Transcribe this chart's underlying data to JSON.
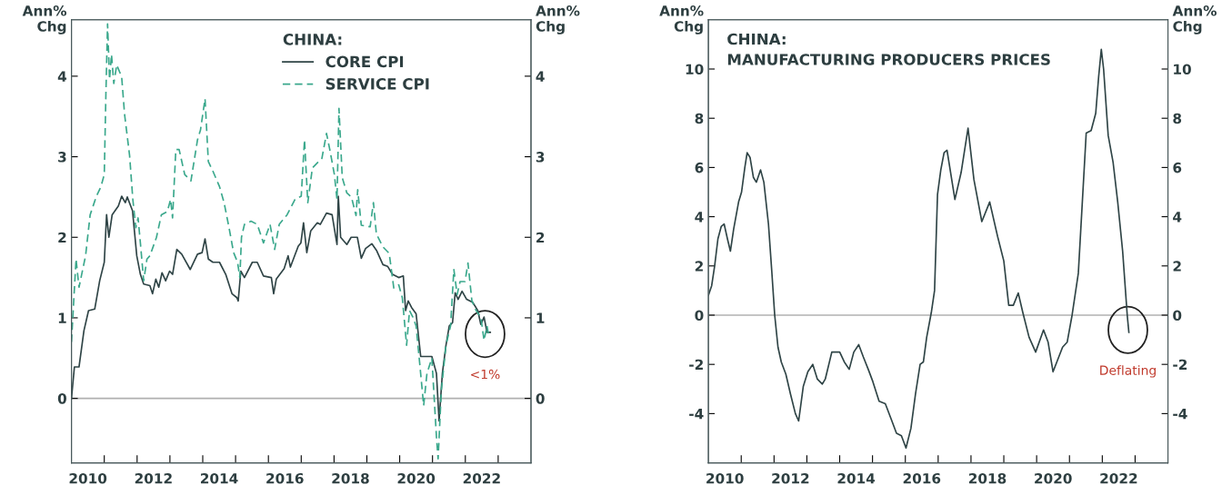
{
  "chart_data": [
    {
      "type": "line",
      "legend_title": "CHINA:",
      "legend": "top",
      "ylabel": "Ann%\nChg",
      "y2label": "Ann%\nChg",
      "xlim": [
        2010,
        2024
      ],
      "xticks": [
        {
          "value": 2010.5,
          "label": "2010"
        },
        {
          "value": 2012.5,
          "label": "2012"
        },
        {
          "value": 2014.5,
          "label": "2014"
        },
        {
          "value": 2016.5,
          "label": "2016"
        },
        {
          "value": 2018.5,
          "label": "2018"
        },
        {
          "value": 2020.5,
          "label": "2020"
        },
        {
          "value": 2022.5,
          "label": "2022"
        },
        {
          "value": 2011,
          "label": null
        },
        {
          "value": 2012,
          "label": null
        },
        {
          "value": 2013,
          "label": null
        },
        {
          "value": 2014,
          "label": null
        },
        {
          "value": 2015,
          "label": null
        },
        {
          "value": 2016,
          "label": null
        },
        {
          "value": 2017,
          "label": null
        },
        {
          "value": 2018,
          "label": null
        },
        {
          "value": 2019,
          "label": null
        },
        {
          "value": 2020,
          "label": null
        },
        {
          "value": 2021,
          "label": null
        },
        {
          "value": 2022,
          "label": null
        },
        {
          "value": 2023,
          "label": null
        }
      ],
      "ylim": [
        -0.8,
        4.7
      ],
      "yticks": [
        0,
        1,
        2,
        3,
        4
      ],
      "y2lim": [
        -0.8,
        4.7
      ],
      "y2ticks": [
        0,
        1,
        2,
        3,
        4
      ],
      "ref_lines": [
        {
          "axis": "y",
          "value": 0,
          "color": "#b0b0b0"
        }
      ],
      "annotations": [
        {
          "text": "<1%",
          "x": 2022.6,
          "y": 0.8
        }
      ],
      "series": [
        {
          "name": "CORE CPI",
          "color": "#2f4446",
          "line_style": "solid",
          "x": [
            2010.0,
            2010.09,
            2010.23,
            2010.38,
            2010.52,
            2010.71,
            2010.86,
            2011.0,
            2011.07,
            2011.14,
            2011.24,
            2011.43,
            2011.53,
            2011.64,
            2011.7,
            2011.86,
            2011.99,
            2012.1,
            2012.2,
            2012.39,
            2012.47,
            2012.57,
            2012.66,
            2012.76,
            2012.87,
            2012.99,
            2013.08,
            2013.21,
            2013.36,
            2013.62,
            2013.84,
            2013.98,
            2014.07,
            2014.17,
            2014.31,
            2014.51,
            2014.7,
            2014.89,
            2015.04,
            2015.08,
            2015.16,
            2015.27,
            2015.51,
            2015.66,
            2015.85,
            2016.09,
            2016.16,
            2016.24,
            2016.48,
            2016.6,
            2016.67,
            2016.91,
            2016.99,
            2017.07,
            2017.17,
            2017.29,
            2017.49,
            2017.58,
            2017.77,
            2017.94,
            2018.09,
            2018.13,
            2018.2,
            2018.39,
            2018.52,
            2018.71,
            2018.83,
            2018.96,
            2019.15,
            2019.29,
            2019.49,
            2019.63,
            2019.78,
            2019.97,
            2020.11,
            2020.18,
            2020.26,
            2020.36,
            2020.5,
            2020.64,
            2020.98,
            2021.12,
            2021.2,
            2021.3,
            2021.41,
            2021.51,
            2021.61,
            2021.69,
            2021.78,
            2021.9,
            2022.04,
            2022.23,
            2022.38,
            2022.47,
            2022.57,
            2022.66,
            2022.76
          ],
          "values": [
            0.0,
            0.39,
            0.39,
            0.84,
            1.09,
            1.11,
            1.46,
            1.69,
            2.28,
            2.0,
            2.28,
            2.39,
            2.51,
            2.43,
            2.5,
            2.33,
            1.77,
            1.54,
            1.42,
            1.4,
            1.3,
            1.48,
            1.38,
            1.56,
            1.46,
            1.58,
            1.54,
            1.85,
            1.79,
            1.6,
            1.79,
            1.81,
            1.98,
            1.73,
            1.69,
            1.69,
            1.54,
            1.3,
            1.25,
            1.21,
            1.58,
            1.5,
            1.69,
            1.69,
            1.52,
            1.5,
            1.3,
            1.48,
            1.61,
            1.77,
            1.63,
            1.89,
            1.93,
            2.18,
            1.81,
            2.08,
            2.18,
            2.16,
            2.3,
            2.28,
            1.91,
            2.51,
            2.0,
            1.91,
            2.0,
            2.0,
            1.74,
            1.86,
            1.92,
            1.84,
            1.66,
            1.64,
            1.54,
            1.5,
            1.52,
            1.09,
            1.21,
            1.13,
            1.05,
            0.52,
            0.52,
            0.31,
            -0.28,
            0.31,
            0.66,
            0.9,
            0.94,
            1.31,
            1.23,
            1.33,
            1.23,
            1.19,
            1.09,
            0.92,
            1.01,
            0.82,
            0.82
          ]
        },
        {
          "name": "SERVICE CPI",
          "color": "#3aa88c",
          "line_style": "dashed",
          "x": [
            2010.0,
            2010.14,
            2010.23,
            2010.43,
            2010.57,
            2010.76,
            2010.9,
            2011.0,
            2011.05,
            2011.1,
            2011.16,
            2011.22,
            2011.29,
            2011.38,
            2011.53,
            2011.62,
            2011.77,
            2011.87,
            2011.96,
            2012.03,
            2012.1,
            2012.2,
            2012.3,
            2012.39,
            2012.59,
            2012.74,
            2012.92,
            2013.02,
            2013.08,
            2013.18,
            2013.28,
            2013.45,
            2013.64,
            2013.84,
            2013.93,
            2014.07,
            2014.17,
            2014.31,
            2014.51,
            2014.65,
            2014.8,
            2014.94,
            2015.06,
            2015.13,
            2015.18,
            2015.27,
            2015.47,
            2015.66,
            2015.85,
            2016.05,
            2016.19,
            2016.33,
            2016.57,
            2016.81,
            2017.0,
            2017.1,
            2017.2,
            2017.34,
            2017.53,
            2017.63,
            2017.77,
            2017.87,
            2018.01,
            2018.09,
            2018.15,
            2018.25,
            2018.39,
            2018.53,
            2018.67,
            2018.72,
            2018.83,
            2019.1,
            2019.2,
            2019.29,
            2019.49,
            2019.68,
            2019.82,
            2019.97,
            2020.08,
            2020.21,
            2020.3,
            2020.4,
            2020.5,
            2020.62,
            2020.73,
            2020.83,
            2020.98,
            2021.12,
            2021.17,
            2021.27,
            2021.41,
            2021.55,
            2021.65,
            2021.75,
            2021.84,
            2021.99,
            2022.08,
            2022.2,
            2022.33,
            2022.47,
            2022.57,
            2022.66,
            2022.71
          ],
          "values": [
            0.7,
            1.73,
            1.38,
            1.77,
            2.28,
            2.51,
            2.63,
            2.78,
            3.79,
            4.65,
            3.96,
            4.27,
            3.91,
            4.14,
            3.99,
            3.52,
            3.02,
            2.47,
            2.12,
            2.24,
            1.93,
            1.46,
            1.73,
            1.77,
            2.0,
            2.28,
            2.32,
            2.47,
            2.24,
            3.09,
            3.09,
            2.78,
            2.7,
            3.21,
            3.33,
            3.72,
            2.94,
            2.82,
            2.63,
            2.43,
            2.12,
            1.81,
            1.69,
            1.5,
            2.0,
            2.16,
            2.2,
            2.16,
            1.93,
            2.16,
            1.85,
            2.16,
            2.28,
            2.47,
            2.51,
            3.21,
            2.43,
            2.86,
            2.94,
            2.98,
            3.29,
            3.09,
            2.78,
            2.47,
            3.6,
            2.74,
            2.55,
            2.5,
            2.27,
            2.59,
            2.15,
            2.13,
            2.43,
            2.04,
            1.88,
            1.8,
            1.37,
            1.41,
            1.25,
            0.66,
            1.09,
            1.01,
            0.9,
            0.39,
            -0.09,
            0.31,
            0.5,
            -0.48,
            -0.75,
            0.11,
            0.66,
            0.9,
            1.6,
            1.29,
            1.45,
            1.45,
            1.68,
            1.21,
            1.09,
            1.01,
            0.72,
            0.9,
            0.78
          ]
        }
      ]
    },
    {
      "type": "line",
      "title": "CHINA:\nMANUFACTURING PRODUCERS PRICES",
      "ylabel": "Ann%\nChg",
      "y2label": "Ann%\nChg",
      "xlim": [
        2010,
        2024
      ],
      "xticks": [
        {
          "value": 2010.5,
          "label": "2010"
        },
        {
          "value": 2012.5,
          "label": "2012"
        },
        {
          "value": 2014.5,
          "label": "2014"
        },
        {
          "value": 2016.5,
          "label": "2016"
        },
        {
          "value": 2018.5,
          "label": "2018"
        },
        {
          "value": 2020.5,
          "label": "2020"
        },
        {
          "value": 2022.5,
          "label": "2022"
        },
        {
          "value": 2011,
          "label": null
        },
        {
          "value": 2012,
          "label": null
        },
        {
          "value": 2013,
          "label": null
        },
        {
          "value": 2014,
          "label": null
        },
        {
          "value": 2015,
          "label": null
        },
        {
          "value": 2016,
          "label": null
        },
        {
          "value": 2017,
          "label": null
        },
        {
          "value": 2018,
          "label": null
        },
        {
          "value": 2019,
          "label": null
        },
        {
          "value": 2020,
          "label": null
        },
        {
          "value": 2021,
          "label": null
        },
        {
          "value": 2022,
          "label": null
        },
        {
          "value": 2023,
          "label": null
        }
      ],
      "ylim": [
        -6,
        12
      ],
      "yticks": [
        -4,
        -2,
        0,
        2,
        4,
        6,
        8,
        10
      ],
      "y2lim": [
        -6,
        12
      ],
      "y2ticks": [
        -4,
        -2,
        0,
        2,
        4,
        6,
        8,
        10
      ],
      "ref_lines": [
        {
          "axis": "y",
          "value": 0,
          "color": "#b0b0b0"
        }
      ],
      "annotations": [
        {
          "text": "Deflating",
          "x": 2022.78,
          "y": -0.6
        }
      ],
      "series": [
        {
          "color": "#2f4446",
          "line_style": "solid",
          "x": [
            2010.0,
            2010.1,
            2010.19,
            2010.29,
            2010.39,
            2010.48,
            2010.58,
            2010.67,
            2010.77,
            2010.92,
            2011.01,
            2011.11,
            2011.18,
            2011.27,
            2011.37,
            2011.46,
            2011.59,
            2011.69,
            2011.83,
            2011.93,
            2012.02,
            2012.12,
            2012.22,
            2012.36,
            2012.5,
            2012.65,
            2012.75,
            2012.89,
            2013.03,
            2013.18,
            2013.32,
            2013.47,
            2013.56,
            2013.76,
            2014.0,
            2014.14,
            2014.29,
            2014.43,
            2014.58,
            2014.72,
            2014.87,
            2015.01,
            2015.2,
            2015.39,
            2015.59,
            2015.73,
            2015.88,
            2016.02,
            2016.17,
            2016.31,
            2016.45,
            2016.55,
            2016.65,
            2016.79,
            2016.89,
            2016.98,
            2017.08,
            2017.18,
            2017.27,
            2017.51,
            2017.7,
            2017.91,
            2018.09,
            2018.33,
            2018.57,
            2018.81,
            2019.0,
            2019.15,
            2019.29,
            2019.44,
            2019.58,
            2019.77,
            2019.97,
            2020.21,
            2020.35,
            2020.5,
            2020.79,
            2020.93,
            2021.08,
            2021.27,
            2021.51,
            2021.66,
            2021.8,
            2021.89,
            2021.97,
            2022.04,
            2022.18,
            2022.33,
            2022.47,
            2022.62,
            2022.76,
            2022.81
          ],
          "values": [
            0.8,
            1.2,
            2.0,
            3.1,
            3.6,
            3.7,
            3.1,
            2.6,
            3.5,
            4.6,
            5.0,
            6.0,
            6.6,
            6.4,
            5.6,
            5.4,
            5.9,
            5.4,
            3.7,
            1.8,
            0.0,
            -1.3,
            -1.9,
            -2.4,
            -3.2,
            -4.0,
            -4.3,
            -2.9,
            -2.3,
            -2.0,
            -2.6,
            -2.8,
            -2.6,
            -1.5,
            -1.5,
            -1.9,
            -2.2,
            -1.5,
            -1.2,
            -1.7,
            -2.2,
            -2.7,
            -3.5,
            -3.6,
            -4.3,
            -4.8,
            -4.9,
            -5.4,
            -4.6,
            -3.2,
            -2.0,
            -1.9,
            -0.9,
            0.1,
            1.0,
            4.9,
            5.9,
            6.6,
            6.7,
            4.7,
            5.8,
            7.6,
            5.5,
            3.8,
            4.6,
            3.2,
            2.2,
            0.4,
            0.4,
            0.9,
            0.1,
            -0.9,
            -1.5,
            -0.6,
            -1.1,
            -2.3,
            -1.3,
            -1.1,
            0.0,
            1.7,
            7.4,
            7.5,
            8.2,
            9.7,
            10.8,
            10.0,
            7.3,
            6.2,
            4.6,
            2.6,
            0.0,
            -0.7
          ]
        }
      ]
    }
  ]
}
